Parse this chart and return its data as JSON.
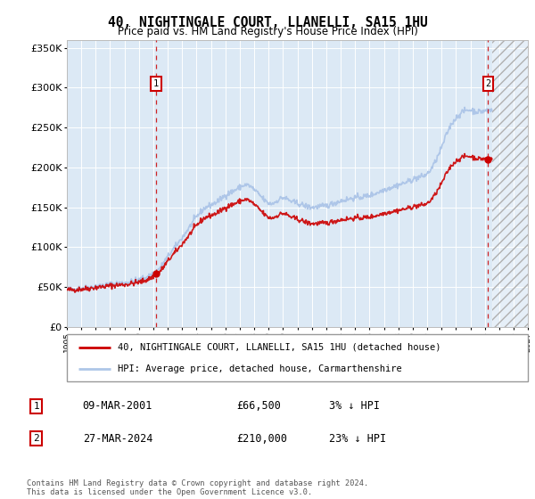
{
  "title": "40, NIGHTINGALE COURT, LLANELLI, SA15 1HU",
  "subtitle": "Price paid vs. HM Land Registry's House Price Index (HPI)",
  "footer": "Contains HM Land Registry data © Crown copyright and database right 2024.\nThis data is licensed under the Open Government Licence v3.0.",
  "legend_line1": "40, NIGHTINGALE COURT, LLANELLI, SA15 1HU (detached house)",
  "legend_line2": "HPI: Average price, detached house, Carmarthenshire",
  "table_rows": [
    {
      "num": "1",
      "date": "09-MAR-2001",
      "price": "£66,500",
      "note": "3% ↓ HPI"
    },
    {
      "num": "2",
      "date": "27-MAR-2024",
      "price": "£210,000",
      "note": "23% ↓ HPI"
    }
  ],
  "sale1_date": 2001.18,
  "sale1_price": 66500,
  "sale2_date": 2024.23,
  "sale2_price": 210000,
  "hpi_color": "#aec6e8",
  "sold_color": "#cc0000",
  "dashed_color": "#cc0000",
  "bg_color": "#dce9f5",
  "grid_color": "#ffffff",
  "ylim": [
    0,
    360000
  ],
  "xlim_start": 1995,
  "xlim_end": 2027,
  "yticks": [
    0,
    50000,
    100000,
    150000,
    200000,
    250000,
    300000,
    350000
  ],
  "hpi_anchors": [
    [
      1995.0,
      47000
    ],
    [
      1995.5,
      47500
    ],
    [
      1996.0,
      48500
    ],
    [
      1996.5,
      49500
    ],
    [
      1997.0,
      51000
    ],
    [
      1997.5,
      52000
    ],
    [
      1998.0,
      53500
    ],
    [
      1998.5,
      54500
    ],
    [
      1999.0,
      55500
    ],
    [
      1999.5,
      57000
    ],
    [
      2000.0,
      59000
    ],
    [
      2000.5,
      62000
    ],
    [
      2001.0,
      67000
    ],
    [
      2001.5,
      75000
    ],
    [
      2002.0,
      88000
    ],
    [
      2002.5,
      100000
    ],
    [
      2003.0,
      112000
    ],
    [
      2003.5,
      125000
    ],
    [
      2004.0,
      138000
    ],
    [
      2004.5,
      148000
    ],
    [
      2005.0,
      153000
    ],
    [
      2005.5,
      158000
    ],
    [
      2006.0,
      165000
    ],
    [
      2006.5,
      170000
    ],
    [
      2007.0,
      175000
    ],
    [
      2007.5,
      178000
    ],
    [
      2008.0,
      172000
    ],
    [
      2008.5,
      163000
    ],
    [
      2009.0,
      155000
    ],
    [
      2009.5,
      157000
    ],
    [
      2010.0,
      162000
    ],
    [
      2010.5,
      158000
    ],
    [
      2011.0,
      155000
    ],
    [
      2011.5,
      152000
    ],
    [
      2012.0,
      150000
    ],
    [
      2012.5,
      151000
    ],
    [
      2013.0,
      152000
    ],
    [
      2013.5,
      155000
    ],
    [
      2014.0,
      158000
    ],
    [
      2014.5,
      160000
    ],
    [
      2015.0,
      162000
    ],
    [
      2015.5,
      163000
    ],
    [
      2016.0,
      165000
    ],
    [
      2016.5,
      168000
    ],
    [
      2017.0,
      172000
    ],
    [
      2017.5,
      175000
    ],
    [
      2018.0,
      178000
    ],
    [
      2018.5,
      181000
    ],
    [
      2019.0,
      185000
    ],
    [
      2019.5,
      188000
    ],
    [
      2020.0,
      192000
    ],
    [
      2020.5,
      205000
    ],
    [
      2021.0,
      225000
    ],
    [
      2021.5,
      248000
    ],
    [
      2022.0,
      262000
    ],
    [
      2022.5,
      270000
    ],
    [
      2023.0,
      272000
    ],
    [
      2023.5,
      270000
    ],
    [
      2024.0,
      271000
    ],
    [
      2024.5,
      272000
    ]
  ]
}
